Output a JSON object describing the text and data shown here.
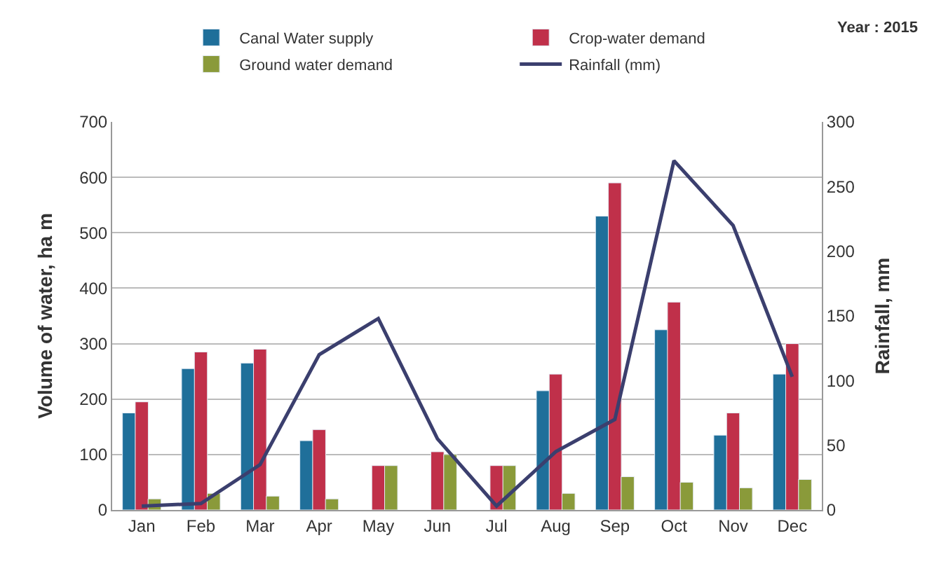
{
  "chart_data": {
    "type": "bar",
    "categories": [
      "Jan",
      "Feb",
      "Mar",
      "Apr",
      "May",
      "Jun",
      "Jul",
      "Aug",
      "Sep",
      "Oct",
      "Nov",
      "Dec"
    ],
    "ylabel": "Volume of water, ha m",
    "y2label": "Rainfall, mm",
    "annotations": [
      "Year : 2015"
    ],
    "series": [
      {
        "name": "Canal Water supply",
        "color": "#1f6f9a",
        "values": [
          175,
          255,
          265,
          125,
          null,
          null,
          null,
          215,
          530,
          325,
          135,
          245
        ]
      },
      {
        "name": "Crop-water demand",
        "color": "#c0304a",
        "values": [
          195,
          285,
          290,
          145,
          80,
          105,
          80,
          245,
          590,
          375,
          175,
          300
        ]
      },
      {
        "name": "Ground water demand",
        "color": "#8a9a3a",
        "values": [
          20,
          30,
          25,
          20,
          80,
          100,
          80,
          30,
          60,
          50,
          40,
          55
        ]
      },
      {
        "name": "Rainfall (mm)",
        "type": "line",
        "axis": "y2",
        "color": "#3b3f6e",
        "values": [
          3,
          5,
          35,
          120,
          148,
          55,
          3,
          45,
          70,
          270,
          220,
          103
        ]
      }
    ],
    "ylim": [
      0,
      700
    ],
    "yticks": [
      0,
      100,
      200,
      300,
      400,
      500,
      600,
      700
    ],
    "y2lim": [
      0,
      300
    ],
    "y2ticks": [
      0,
      50,
      100,
      150,
      200,
      250,
      300
    ],
    "grid": "y",
    "legend": "top"
  }
}
